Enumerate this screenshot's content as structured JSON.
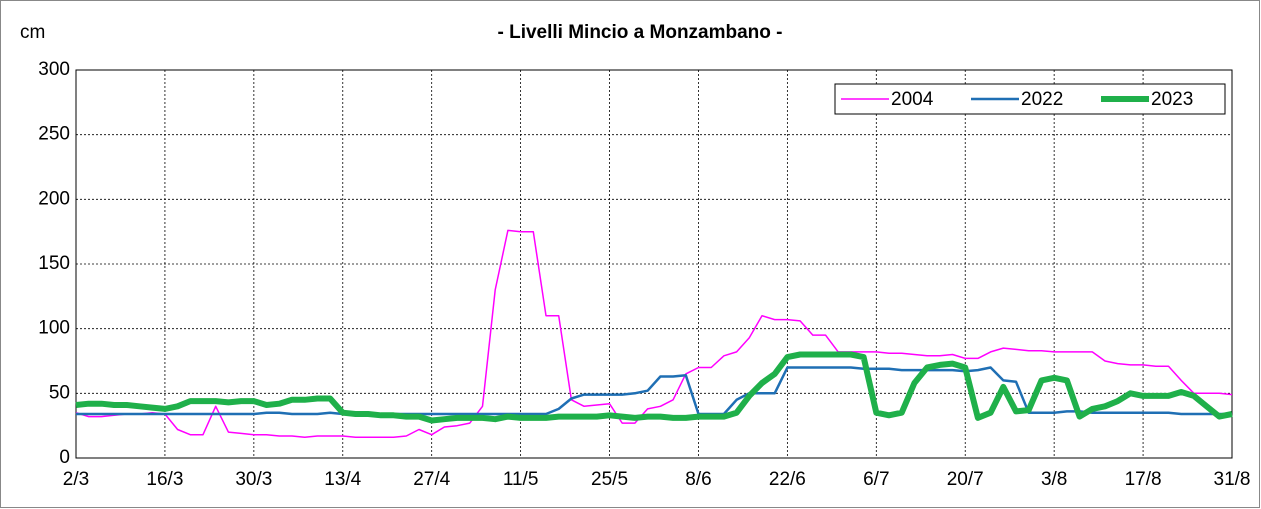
{
  "chart_data": {
    "type": "line",
    "title": "- Livelli Mincio a Monzambano -",
    "y_label": "cm",
    "categories": [
      "2/3",
      null,
      null,
      null,
      null,
      null,
      null,
      "16/3",
      null,
      null,
      null,
      null,
      null,
      null,
      "30/3",
      null,
      null,
      null,
      null,
      null,
      null,
      "13/4",
      null,
      null,
      null,
      null,
      null,
      null,
      "27/4",
      null,
      null,
      null,
      null,
      null,
      null,
      "11/5",
      null,
      null,
      null,
      null,
      null,
      null,
      "25/5",
      null,
      null,
      null,
      null,
      null,
      null,
      "8/6",
      null,
      null,
      null,
      null,
      null,
      null,
      "22/6",
      null,
      null,
      null,
      null,
      null,
      null,
      "6/7",
      null,
      null,
      null,
      null,
      null,
      null,
      "20/7",
      null,
      null,
      null,
      null,
      null,
      null,
      "3/8",
      null,
      null,
      null,
      null,
      null,
      null,
      "17/8",
      null,
      null,
      null,
      null,
      null,
      null,
      "31/8"
    ],
    "series": [
      {
        "name": "2004",
        "color": "#ff00ff",
        "width": 1.5,
        "values": [
          35,
          32,
          32,
          33,
          34,
          34,
          35,
          34,
          22,
          18,
          18,
          40,
          20,
          19,
          18,
          18,
          17,
          17,
          16,
          17,
          17,
          17,
          16,
          16,
          16,
          16,
          17,
          22,
          18,
          24,
          25,
          27,
          40,
          130,
          176,
          175,
          175,
          110,
          110,
          45,
          40,
          41,
          42,
          27,
          27,
          38,
          40,
          45,
          65,
          70,
          70,
          79,
          82,
          93,
          110,
          107,
          107,
          106,
          95,
          95,
          82,
          82,
          82,
          82,
          81,
          81,
          80,
          79,
          79,
          80,
          77,
          77,
          82,
          85,
          84,
          83,
          83,
          82,
          82,
          82,
          82,
          75,
          73,
          72,
          72,
          71,
          71,
          60,
          50,
          50,
          50,
          49
        ]
      },
      {
        "name": "2022",
        "color": "#1f6fb4",
        "width": 2.5,
        "values": [
          34,
          34,
          34,
          34,
          34,
          34,
          34,
          34,
          34,
          34,
          34,
          34,
          34,
          34,
          34,
          35,
          35,
          34,
          34,
          34,
          35,
          34,
          34,
          34,
          34,
          34,
          34,
          34,
          34,
          34,
          34,
          34,
          34,
          34,
          34,
          34,
          34,
          34,
          38,
          46,
          49,
          49,
          49,
          49,
          50,
          52,
          63,
          63,
          64,
          34,
          34,
          34,
          45,
          50,
          50,
          50,
          70,
          70,
          70,
          70,
          70,
          70,
          69,
          69,
          69,
          68,
          68,
          68,
          68,
          68,
          67,
          68,
          70,
          60,
          59,
          35,
          35,
          35,
          36,
          36,
          35,
          35,
          35,
          35,
          35,
          35,
          35,
          34,
          34,
          34,
          34,
          34
        ]
      },
      {
        "name": "2023",
        "color": "#1fb04a",
        "width": 6,
        "values": [
          41,
          42,
          42,
          41,
          41,
          40,
          39,
          38,
          40,
          44,
          44,
          44,
          43,
          44,
          44,
          41,
          42,
          45,
          45,
          46,
          46,
          35,
          34,
          34,
          33,
          33,
          32,
          32,
          29,
          30,
          31,
          31,
          31,
          30,
          32,
          31,
          31,
          31,
          32,
          32,
          32,
          32,
          33,
          32,
          31,
          32,
          32,
          31,
          31,
          32,
          32,
          32,
          35,
          48,
          58,
          65,
          78,
          80,
          80,
          80,
          80,
          80,
          78,
          35,
          33,
          35,
          58,
          70,
          72,
          73,
          70,
          31,
          35,
          55,
          36,
          37,
          60,
          62,
          60,
          32,
          38,
          40,
          44,
          50,
          48,
          48,
          48,
          51,
          48,
          40,
          32,
          34
        ]
      }
    ],
    "ylim": [
      0,
      300
    ],
    "yticks": [
      0,
      50,
      100,
      150,
      200,
      250,
      300
    ],
    "grid": true,
    "legend": "upper right"
  }
}
